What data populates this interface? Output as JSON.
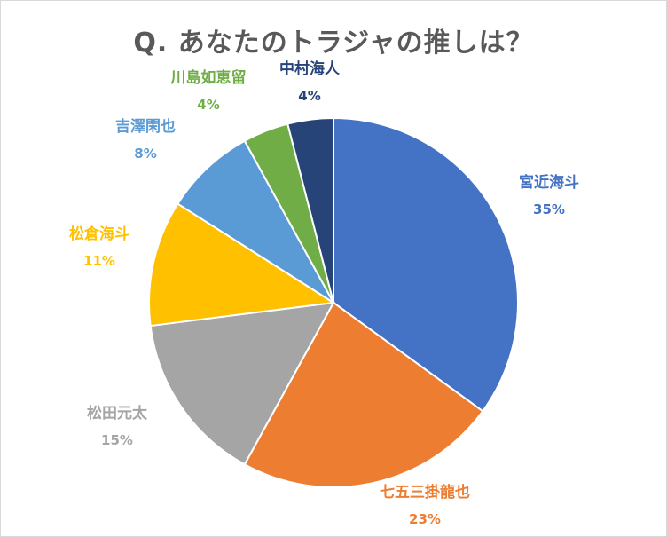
{
  "chart_data": {
    "type": "pie",
    "title": "Q. あなたのトラジャの推しは？",
    "series": [
      {
        "name": "宮近海斗",
        "value": 35,
        "label": "35%",
        "color": "#4472c4"
      },
      {
        "name": "七五三掛龍也",
        "value": 23,
        "label": "23%",
        "color": "#ed7d31"
      },
      {
        "name": "松田元太",
        "value": 15,
        "label": "15%",
        "color": "#a5a5a5"
      },
      {
        "name": "松倉海斗",
        "value": 11,
        "label": "11%",
        "color": "#ffc000"
      },
      {
        "name": "吉澤閑也",
        "value": 8,
        "label": "8%",
        "color": "#5b9bd5"
      },
      {
        "name": "川島如恵留",
        "value": 4,
        "label": "4%",
        "color": "#70ad47"
      },
      {
        "name": "中村海人",
        "value": 4,
        "label": "4%",
        "color": "#264478"
      }
    ]
  }
}
